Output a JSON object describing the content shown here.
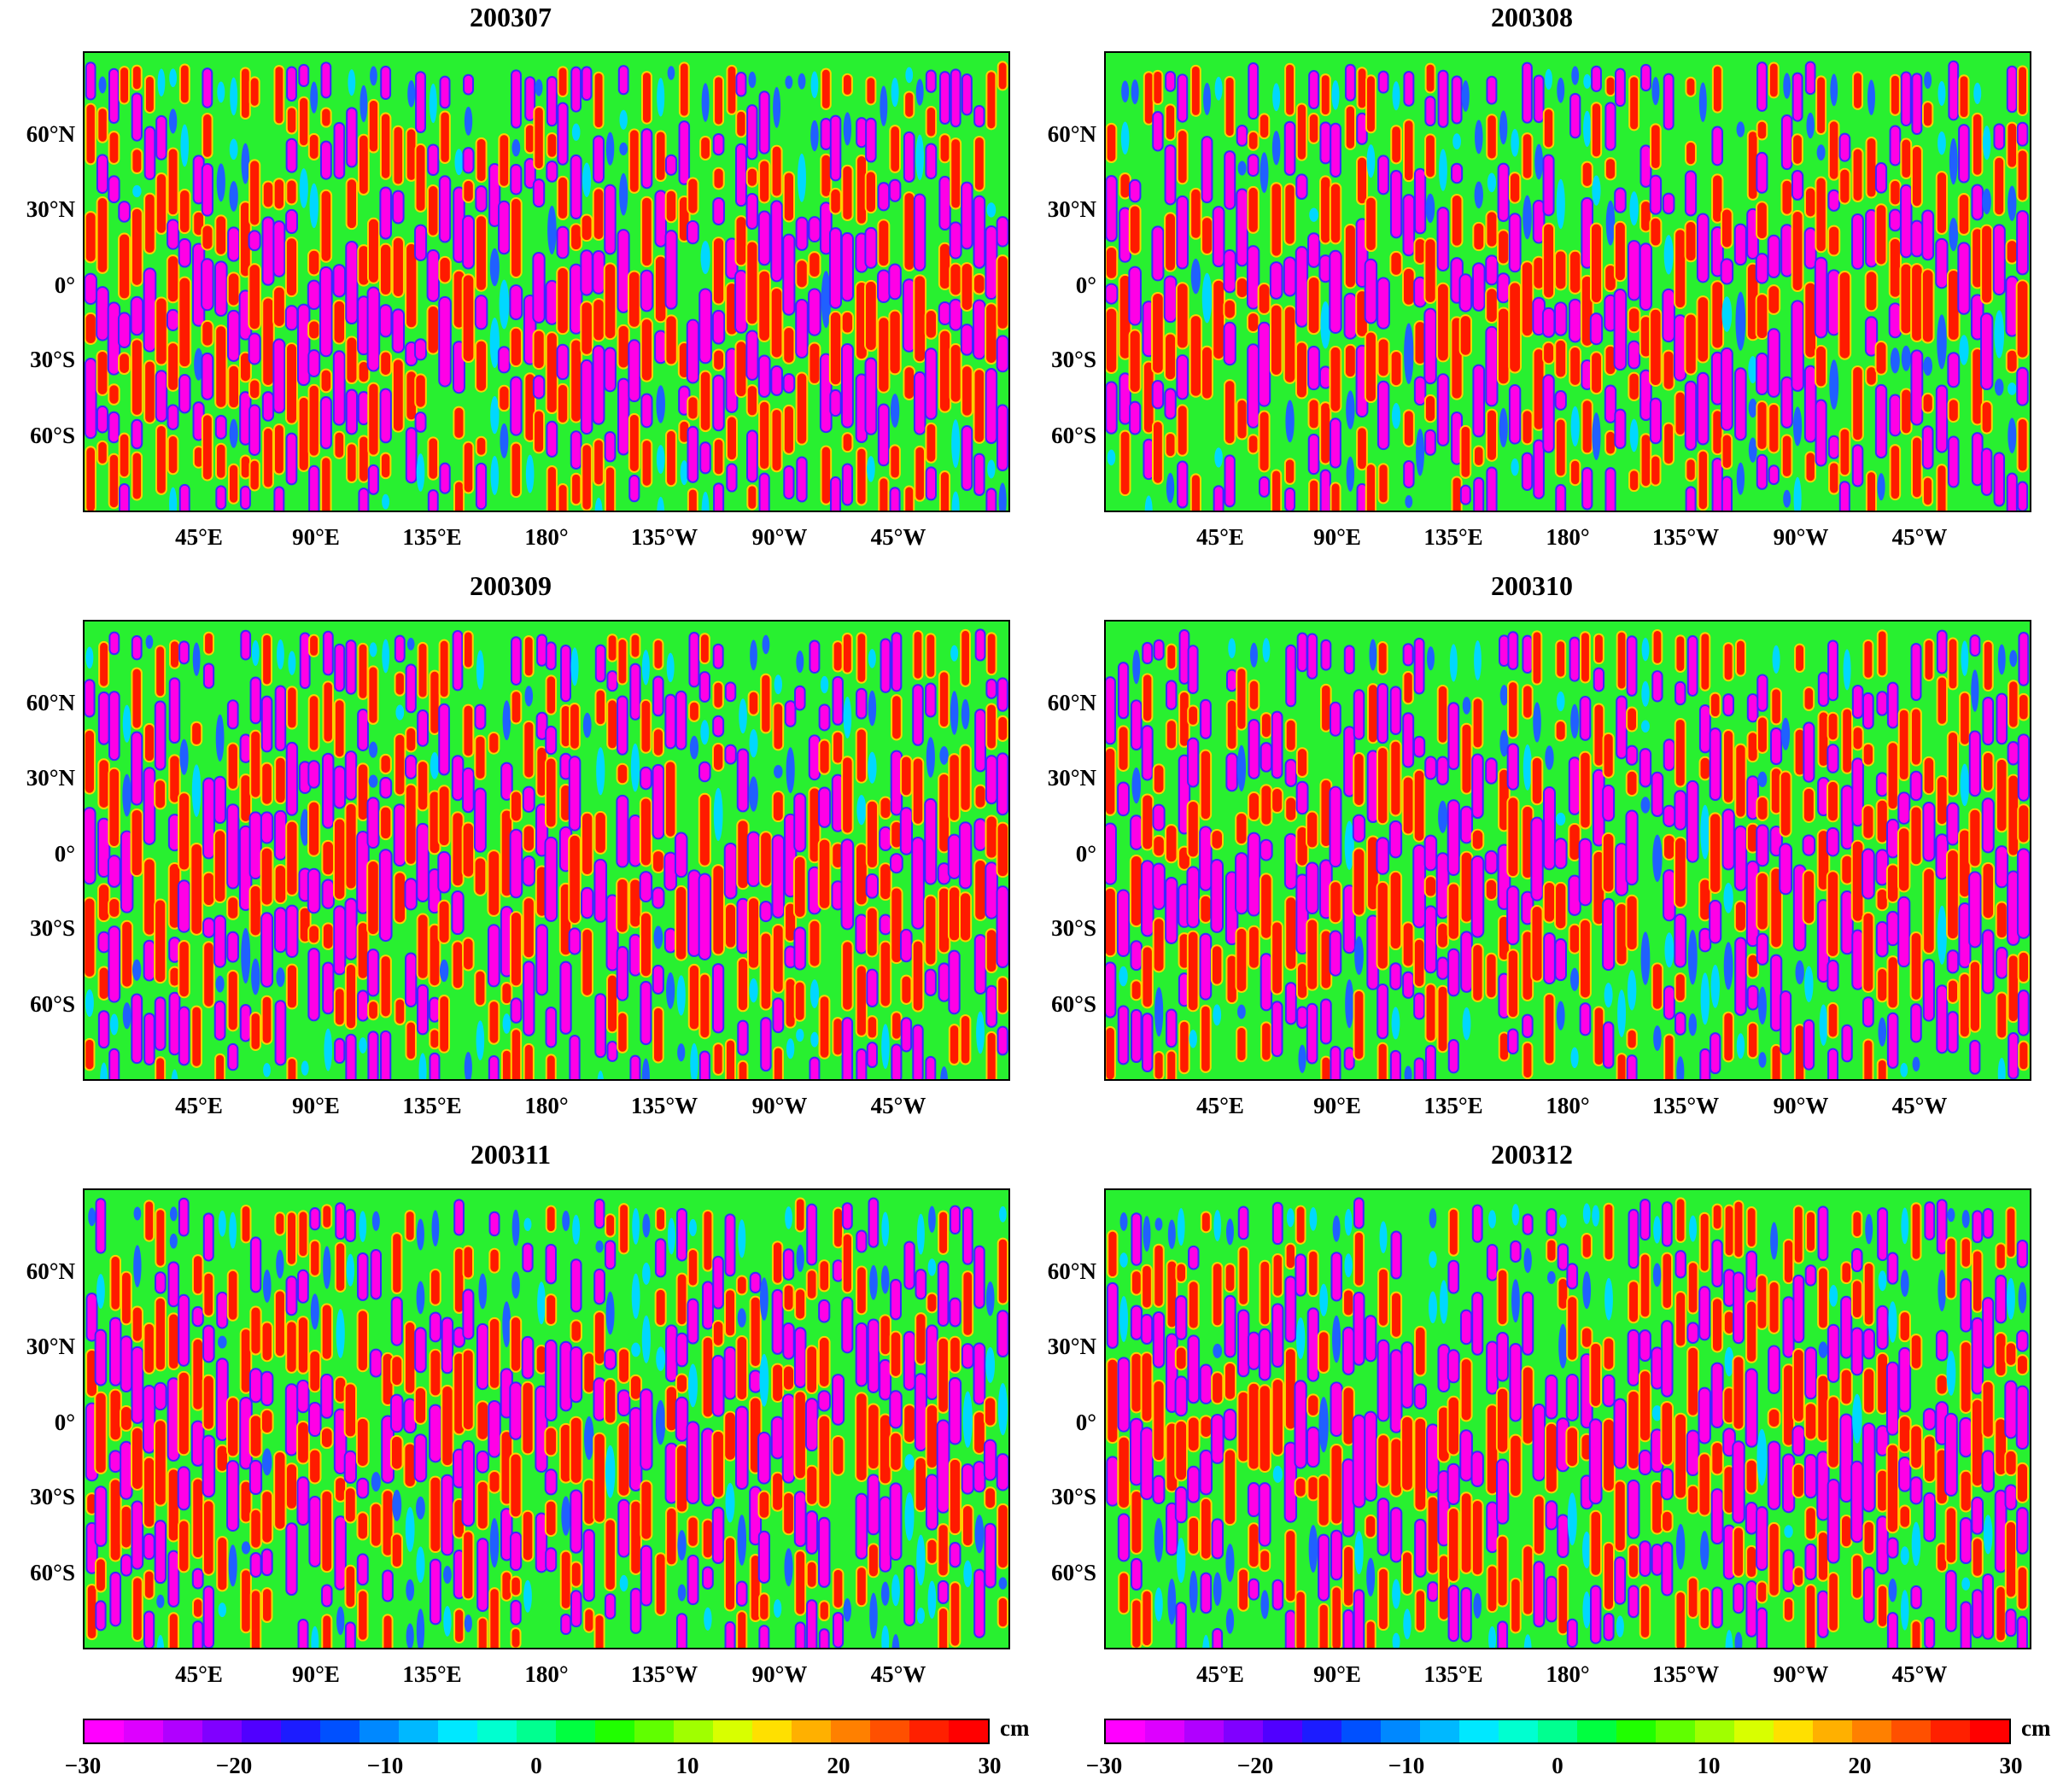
{
  "figure": {
    "panels": [
      {
        "title": "200307",
        "seed": 7
      },
      {
        "title": "200308",
        "seed": 8
      },
      {
        "title": "200309",
        "seed": 9
      },
      {
        "title": "200310",
        "seed": 10
      },
      {
        "title": "200311",
        "seed": 11
      },
      {
        "title": "200312",
        "seed": 12
      }
    ],
    "lat_labels": [
      "60°N",
      "30°N",
      "0°",
      "30°S",
      "60°S"
    ],
    "lon_labels": [
      "45°E",
      "90°E",
      "135°E",
      "180°",
      "135°W",
      "90°W",
      "45°W"
    ],
    "colorbar": {
      "unit": "cm",
      "min": -30,
      "max": 30,
      "ticks": [
        "−30",
        "−20",
        "−10",
        "0",
        "10",
        "20",
        "30"
      ],
      "colors": [
        "#ff00ff",
        "#dd00ff",
        "#b000ff",
        "#8000ff",
        "#5000ff",
        "#1c1cff",
        "#0050ff",
        "#0088ff",
        "#00b8ff",
        "#00e8ff",
        "#00ffd0",
        "#00ff90",
        "#00ff40",
        "#20ff00",
        "#60ff00",
        "#a0ff00",
        "#d8ff00",
        "#ffe000",
        "#ffb000",
        "#ff8000",
        "#ff5000",
        "#ff2000",
        "#ff0000"
      ]
    }
  }
}
